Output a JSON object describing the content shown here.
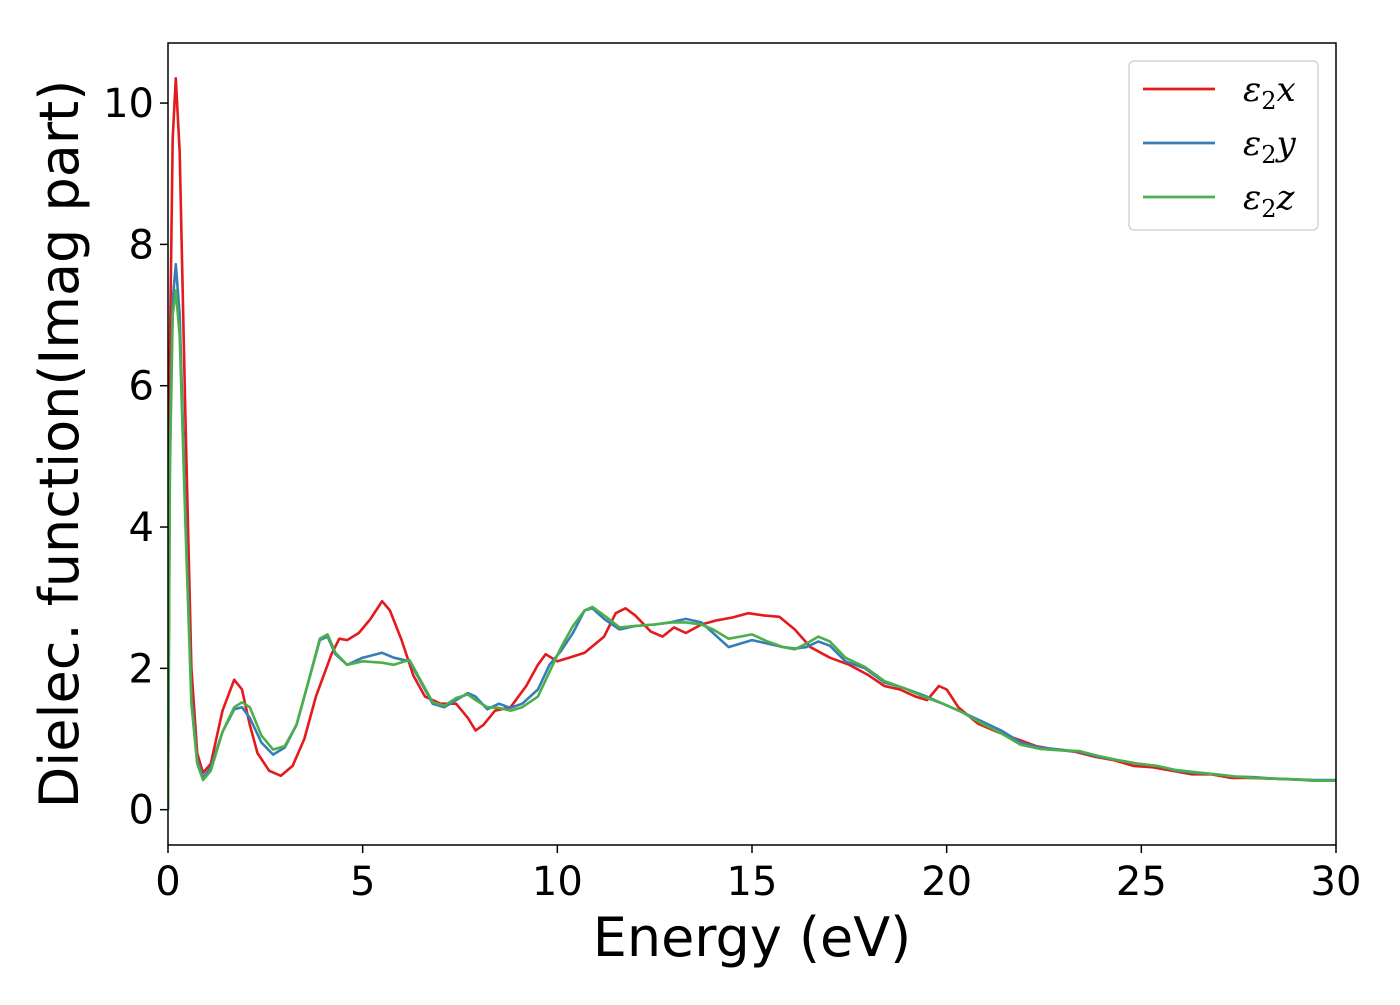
{
  "chart_data": {
    "type": "line",
    "xlabel": "Energy (eV)",
    "ylabel": "Dielec. function(Imag part)",
    "xlim": [
      0,
      30
    ],
    "ylim": [
      -0.5,
      10.85
    ],
    "xticks": [
      0,
      5,
      10,
      15,
      20,
      25,
      30
    ],
    "yticks": [
      0,
      2,
      4,
      6,
      8,
      10
    ],
    "grid": false,
    "legend_position": "top-right",
    "series": [
      {
        "name": "ε₂x",
        "legend_base": "ε",
        "legend_sub": "2",
        "legend_suffix": "x",
        "color": "#e41a1c",
        "points": [
          [
            0,
            0
          ],
          [
            0.05,
            6.5
          ],
          [
            0.12,
            9.5
          ],
          [
            0.2,
            10.35
          ],
          [
            0.3,
            9.3
          ],
          [
            0.45,
            5.5
          ],
          [
            0.6,
            2.0
          ],
          [
            0.75,
            0.8
          ],
          [
            0.9,
            0.52
          ],
          [
            1.1,
            0.65
          ],
          [
            1.4,
            1.4
          ],
          [
            1.7,
            1.84
          ],
          [
            1.9,
            1.7
          ],
          [
            2.1,
            1.2
          ],
          [
            2.3,
            0.8
          ],
          [
            2.6,
            0.55
          ],
          [
            2.9,
            0.48
          ],
          [
            3.2,
            0.62
          ],
          [
            3.5,
            1.0
          ],
          [
            3.8,
            1.6
          ],
          [
            4.2,
            2.2
          ],
          [
            4.4,
            2.42
          ],
          [
            4.6,
            2.4
          ],
          [
            4.9,
            2.5
          ],
          [
            5.2,
            2.7
          ],
          [
            5.5,
            2.95
          ],
          [
            5.7,
            2.82
          ],
          [
            6.0,
            2.4
          ],
          [
            6.3,
            1.9
          ],
          [
            6.6,
            1.6
          ],
          [
            7.0,
            1.5
          ],
          [
            7.4,
            1.5
          ],
          [
            7.7,
            1.3
          ],
          [
            7.9,
            1.12
          ],
          [
            8.1,
            1.2
          ],
          [
            8.4,
            1.4
          ],
          [
            8.8,
            1.45
          ],
          [
            9.2,
            1.75
          ],
          [
            9.5,
            2.05
          ],
          [
            9.7,
            2.2
          ],
          [
            10.0,
            2.1
          ],
          [
            10.3,
            2.15
          ],
          [
            10.7,
            2.22
          ],
          [
            11.2,
            2.45
          ],
          [
            11.5,
            2.78
          ],
          [
            11.75,
            2.85
          ],
          [
            12.0,
            2.75
          ],
          [
            12.4,
            2.52
          ],
          [
            12.7,
            2.45
          ],
          [
            13.0,
            2.58
          ],
          [
            13.3,
            2.5
          ],
          [
            13.7,
            2.62
          ],
          [
            14.1,
            2.68
          ],
          [
            14.5,
            2.72
          ],
          [
            14.9,
            2.78
          ],
          [
            15.3,
            2.75
          ],
          [
            15.7,
            2.73
          ],
          [
            16.1,
            2.55
          ],
          [
            16.5,
            2.3
          ],
          [
            17.0,
            2.15
          ],
          [
            17.5,
            2.05
          ],
          [
            18.0,
            1.9
          ],
          [
            18.4,
            1.75
          ],
          [
            18.8,
            1.7
          ],
          [
            19.2,
            1.6
          ],
          [
            19.5,
            1.55
          ],
          [
            19.8,
            1.75
          ],
          [
            20.0,
            1.7
          ],
          [
            20.3,
            1.45
          ],
          [
            20.8,
            1.22
          ],
          [
            21.3,
            1.1
          ],
          [
            21.8,
            1.0
          ],
          [
            22.3,
            0.9
          ],
          [
            22.8,
            0.85
          ],
          [
            23.3,
            0.82
          ],
          [
            23.8,
            0.75
          ],
          [
            24.3,
            0.7
          ],
          [
            24.8,
            0.62
          ],
          [
            25.3,
            0.6
          ],
          [
            25.8,
            0.55
          ],
          [
            26.3,
            0.5
          ],
          [
            26.8,
            0.5
          ],
          [
            27.3,
            0.45
          ],
          [
            27.8,
            0.45
          ],
          [
            28.3,
            0.44
          ],
          [
            28.8,
            0.43
          ],
          [
            29.3,
            0.42
          ],
          [
            29.7,
            0.41
          ],
          [
            30.0,
            0.41
          ]
        ]
      },
      {
        "name": "ε₂y",
        "legend_base": "ε",
        "legend_sub": "2",
        "legend_suffix": "y",
        "color": "#377eb8",
        "points": [
          [
            0,
            0
          ],
          [
            0.05,
            5.0
          ],
          [
            0.12,
            7.2
          ],
          [
            0.2,
            7.72
          ],
          [
            0.3,
            7.0
          ],
          [
            0.45,
            4.2
          ],
          [
            0.6,
            1.6
          ],
          [
            0.75,
            0.7
          ],
          [
            0.9,
            0.45
          ],
          [
            1.1,
            0.6
          ],
          [
            1.4,
            1.1
          ],
          [
            1.7,
            1.42
          ],
          [
            1.9,
            1.45
          ],
          [
            2.1,
            1.3
          ],
          [
            2.4,
            0.95
          ],
          [
            2.7,
            0.78
          ],
          [
            3.0,
            0.88
          ],
          [
            3.3,
            1.2
          ],
          [
            3.6,
            1.8
          ],
          [
            3.9,
            2.4
          ],
          [
            4.1,
            2.45
          ],
          [
            4.3,
            2.2
          ],
          [
            4.6,
            2.05
          ],
          [
            5.0,
            2.15
          ],
          [
            5.5,
            2.22
          ],
          [
            5.8,
            2.15
          ],
          [
            6.2,
            2.1
          ],
          [
            6.5,
            1.8
          ],
          [
            6.8,
            1.5
          ],
          [
            7.1,
            1.45
          ],
          [
            7.4,
            1.55
          ],
          [
            7.7,
            1.65
          ],
          [
            7.9,
            1.6
          ],
          [
            8.2,
            1.42
          ],
          [
            8.5,
            1.5
          ],
          [
            8.8,
            1.44
          ],
          [
            9.1,
            1.5
          ],
          [
            9.5,
            1.7
          ],
          [
            9.8,
            2.05
          ],
          [
            10.1,
            2.25
          ],
          [
            10.4,
            2.5
          ],
          [
            10.7,
            2.82
          ],
          [
            10.9,
            2.85
          ],
          [
            11.2,
            2.7
          ],
          [
            11.6,
            2.55
          ],
          [
            12.0,
            2.6
          ],
          [
            12.5,
            2.62
          ],
          [
            12.9,
            2.65
          ],
          [
            13.3,
            2.7
          ],
          [
            13.7,
            2.65
          ],
          [
            14.0,
            2.5
          ],
          [
            14.4,
            2.3
          ],
          [
            14.7,
            2.35
          ],
          [
            15.0,
            2.4
          ],
          [
            15.4,
            2.35
          ],
          [
            15.8,
            2.3
          ],
          [
            16.1,
            2.28
          ],
          [
            16.4,
            2.3
          ],
          [
            16.7,
            2.38
          ],
          [
            17.0,
            2.32
          ],
          [
            17.4,
            2.1
          ],
          [
            17.9,
            2.0
          ],
          [
            18.4,
            1.8
          ],
          [
            18.9,
            1.72
          ],
          [
            19.4,
            1.62
          ],
          [
            19.9,
            1.5
          ],
          [
            20.4,
            1.38
          ],
          [
            20.9,
            1.25
          ],
          [
            21.4,
            1.12
          ],
          [
            21.9,
            0.95
          ],
          [
            22.4,
            0.88
          ],
          [
            22.9,
            0.85
          ],
          [
            23.4,
            0.82
          ],
          [
            23.9,
            0.75
          ],
          [
            24.4,
            0.7
          ],
          [
            24.9,
            0.65
          ],
          [
            25.4,
            0.62
          ],
          [
            25.9,
            0.55
          ],
          [
            26.4,
            0.52
          ],
          [
            26.9,
            0.5
          ],
          [
            27.4,
            0.47
          ],
          [
            27.9,
            0.46
          ],
          [
            28.4,
            0.44
          ],
          [
            28.9,
            0.43
          ],
          [
            29.4,
            0.42
          ],
          [
            30.0,
            0.42
          ]
        ]
      },
      {
        "name": "ε₂z",
        "legend_base": "ε",
        "legend_sub": "2",
        "legend_suffix": "z",
        "color": "#4daf4a",
        "points": [
          [
            0,
            0
          ],
          [
            0.05,
            4.8
          ],
          [
            0.12,
            7.0
          ],
          [
            0.2,
            7.35
          ],
          [
            0.3,
            6.7
          ],
          [
            0.45,
            4.0
          ],
          [
            0.6,
            1.5
          ],
          [
            0.75,
            0.65
          ],
          [
            0.9,
            0.42
          ],
          [
            1.1,
            0.55
          ],
          [
            1.4,
            1.1
          ],
          [
            1.7,
            1.45
          ],
          [
            1.9,
            1.52
          ],
          [
            2.1,
            1.45
          ],
          [
            2.4,
            1.05
          ],
          [
            2.7,
            0.85
          ],
          [
            3.0,
            0.9
          ],
          [
            3.3,
            1.2
          ],
          [
            3.6,
            1.8
          ],
          [
            3.9,
            2.42
          ],
          [
            4.1,
            2.48
          ],
          [
            4.3,
            2.22
          ],
          [
            4.6,
            2.05
          ],
          [
            5.0,
            2.1
          ],
          [
            5.5,
            2.08
          ],
          [
            5.8,
            2.05
          ],
          [
            6.2,
            2.12
          ],
          [
            6.5,
            1.82
          ],
          [
            6.8,
            1.52
          ],
          [
            7.1,
            1.47
          ],
          [
            7.4,
            1.58
          ],
          [
            7.7,
            1.63
          ],
          [
            7.9,
            1.55
          ],
          [
            8.2,
            1.45
          ],
          [
            8.5,
            1.44
          ],
          [
            8.8,
            1.4
          ],
          [
            9.1,
            1.45
          ],
          [
            9.5,
            1.6
          ],
          [
            9.8,
            1.95
          ],
          [
            10.1,
            2.3
          ],
          [
            10.4,
            2.6
          ],
          [
            10.7,
            2.82
          ],
          [
            10.9,
            2.87
          ],
          [
            11.2,
            2.75
          ],
          [
            11.6,
            2.58
          ],
          [
            12.0,
            2.6
          ],
          [
            12.5,
            2.62
          ],
          [
            12.9,
            2.65
          ],
          [
            13.3,
            2.65
          ],
          [
            13.7,
            2.62
          ],
          [
            14.0,
            2.55
          ],
          [
            14.4,
            2.42
          ],
          [
            14.7,
            2.45
          ],
          [
            15.0,
            2.48
          ],
          [
            15.4,
            2.38
          ],
          [
            15.8,
            2.3
          ],
          [
            16.1,
            2.27
          ],
          [
            16.4,
            2.35
          ],
          [
            16.7,
            2.45
          ],
          [
            17.0,
            2.38
          ],
          [
            17.4,
            2.15
          ],
          [
            17.9,
            2.02
          ],
          [
            18.4,
            1.82
          ],
          [
            18.9,
            1.72
          ],
          [
            19.4,
            1.6
          ],
          [
            19.9,
            1.5
          ],
          [
            20.4,
            1.38
          ],
          [
            20.9,
            1.22
          ],
          [
            21.4,
            1.08
          ],
          [
            21.9,
            0.92
          ],
          [
            22.4,
            0.86
          ],
          [
            22.9,
            0.84
          ],
          [
            23.4,
            0.83
          ],
          [
            23.9,
            0.76
          ],
          [
            24.4,
            0.7
          ],
          [
            24.9,
            0.65
          ],
          [
            25.4,
            0.62
          ],
          [
            25.9,
            0.56
          ],
          [
            26.4,
            0.53
          ],
          [
            26.9,
            0.5
          ],
          [
            27.4,
            0.47
          ],
          [
            27.9,
            0.45
          ],
          [
            28.4,
            0.44
          ],
          [
            28.9,
            0.43
          ],
          [
            29.4,
            0.41
          ],
          [
            30.0,
            0.41
          ]
        ]
      }
    ]
  }
}
